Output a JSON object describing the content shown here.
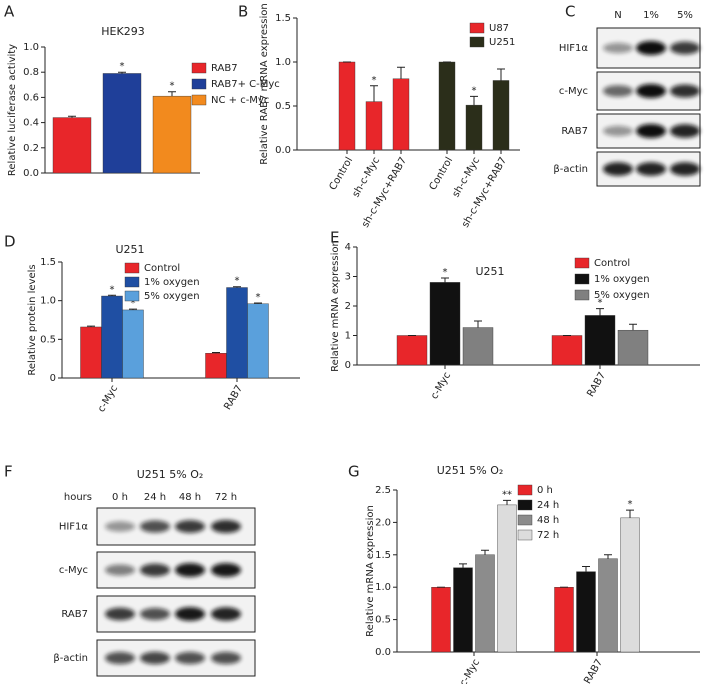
{
  "chart_data": [
    {
      "label": "A",
      "type": "bar",
      "title": "HEK293",
      "y_label": "Relative luciferase activity",
      "categories": [
        null
      ],
      "series": [
        {
          "name": "RAB7",
          "color": "#e8262a",
          "values": [
            0.44
          ],
          "errors": [
            0.01
          ],
          "significance": [
            null
          ]
        },
        {
          "name": "RAB7+ C-Myc",
          "color": "#1f3f99",
          "values": [
            0.79
          ],
          "errors": [
            0.01
          ],
          "significance": [
            "*"
          ]
        },
        {
          "name": "NC + c-Myc",
          "color": "#f28a1e",
          "values": [
            0.61
          ],
          "errors": [
            0.035
          ],
          "significance": [
            "*"
          ]
        }
      ],
      "ylim": [
        0,
        1.0
      ],
      "yticks": [
        {
          "value": 0,
          "label": "0.0"
        },
        0.2,
        0.4,
        0.6,
        0.8,
        {
          "value": 1,
          "label": "1.0"
        }
      ]
    },
    {
      "label": "B",
      "type": "bar",
      "y_label": "Relative RAB7 mRNA expression",
      "categories": [
        "Control",
        "sh-c-Myc",
        "sh-c-Myc+RAB7",
        "Control",
        "sh-c-Myc",
        "sh-c-Myc+RAB7"
      ],
      "series": [
        {
          "name": "U87",
          "color": "#e8262a",
          "values": [
            1.0,
            0.55,
            0.81,
            null,
            null,
            null
          ],
          "errors": [
            0,
            0.18,
            0.13,
            null,
            null,
            null
          ],
          "significance": [
            null,
            "*",
            null,
            null,
            null,
            null
          ]
        },
        {
          "name": "U251",
          "color": "#2b2e1a",
          "values": [
            null,
            null,
            null,
            1.0,
            0.51,
            0.79
          ],
          "errors": [
            null,
            null,
            null,
            0,
            0.1,
            0.13
          ],
          "significance": [
            null,
            null,
            null,
            null,
            "*",
            null
          ]
        }
      ],
      "ylim": [
        0,
        1.5
      ],
      "yticks": [
        {
          "value": 0,
          "label": "0.0"
        },
        0.5,
        {
          "value": 1,
          "label": "1.0"
        },
        1.5
      ]
    },
    {
      "label": "D",
      "type": "bar",
      "title": "U251",
      "y_label": "Relative protein levels",
      "categories": [
        "c-Myc",
        "RAB7"
      ],
      "series": [
        {
          "name": "Control",
          "color": "#e8262a",
          "values": [
            0.66,
            0.32
          ],
          "errors": [
            0.01,
            0.01
          ],
          "significance": [
            null,
            null
          ]
        },
        {
          "name": "1% oxygen",
          "color": "#1f4fa3",
          "values": [
            1.06,
            1.17
          ],
          "errors": [
            0.01,
            0.01
          ],
          "significance": [
            "*",
            "*"
          ]
        },
        {
          "name": "5% oxygen",
          "color": "#5aa0dc",
          "values": [
            0.88,
            0.96
          ],
          "errors": [
            0.01,
            0.01
          ],
          "significance": [
            "*",
            "*"
          ]
        }
      ],
      "ylim": [
        0,
        1.5
      ],
      "yticks": [
        0,
        0.5,
        {
          "value": 1,
          "label": "1.0"
        },
        1.5
      ]
    },
    {
      "label": "E",
      "type": "bar",
      "title": "U251",
      "y_label": "Relative mRNA expression",
      "categories": [
        "c-Myc",
        "RAB7"
      ],
      "series": [
        {
          "name": "Control",
          "color": "#e8262a",
          "values": [
            1,
            1
          ],
          "errors": [
            0,
            0
          ],
          "significance": [
            null,
            null
          ]
        },
        {
          "name": "1% oxygen",
          "color": "#111111",
          "values": [
            2.8,
            1.68
          ],
          "errors": [
            0.15,
            0.23
          ],
          "significance": [
            "*",
            "*"
          ]
        },
        {
          "name": "5% oxygen",
          "color": "#808080",
          "values": [
            1.27,
            1.18
          ],
          "errors": [
            0.22,
            0.2
          ],
          "significance": [
            null,
            null
          ]
        }
      ],
      "ylim": [
        0,
        4
      ],
      "yticks": [
        0,
        1,
        2,
        3,
        4
      ]
    },
    {
      "label": "G",
      "type": "bar",
      "title": "U251 5% O₂",
      "y_label": "Relative mRNA expression",
      "categories": [
        "c-Myc",
        "RAB7"
      ],
      "series": [
        {
          "name": "0 h",
          "color": "#e8262a",
          "values": [
            1,
            1
          ],
          "errors": [
            0,
            0
          ],
          "significance": [
            null,
            null
          ]
        },
        {
          "name": "24 h",
          "color": "#111111",
          "values": [
            1.3,
            1.24
          ],
          "errors": [
            0.06,
            0.08
          ],
          "significance": [
            null,
            null
          ]
        },
        {
          "name": "48 h",
          "color": "#8c8c8c",
          "values": [
            1.5,
            1.44
          ],
          "errors": [
            0.07,
            0.06
          ],
          "significance": [
            null,
            null
          ]
        },
        {
          "name": "72 h",
          "color": "#dcdcdc",
          "values": [
            2.27,
            2.07
          ],
          "errors": [
            0.07,
            0.12
          ],
          "significance": [
            "**",
            "*"
          ]
        }
      ],
      "ylim": [
        0,
        2.5
      ],
      "yticks": [
        {
          "value": 0,
          "label": "0.0"
        },
        0.5,
        {
          "value": 1,
          "label": "1.0"
        },
        1.5,
        {
          "value": 2,
          "label": "2.0"
        },
        2.5
      ]
    }
  ],
  "blots": [
    {
      "label": "C",
      "columns": [
        "N",
        "1%",
        "5%"
      ],
      "rows": [
        "HIF1α",
        "c-Myc",
        "RAB7",
        "β-actin"
      ]
    },
    {
      "label": "F",
      "title": "U251 5% O₂",
      "column_label": "hours",
      "columns": [
        "0 h",
        "24 h",
        "48 h",
        "72 h"
      ],
      "rows": [
        "HIF1α",
        "c-Myc",
        "RAB7",
        "β-actin"
      ]
    }
  ]
}
